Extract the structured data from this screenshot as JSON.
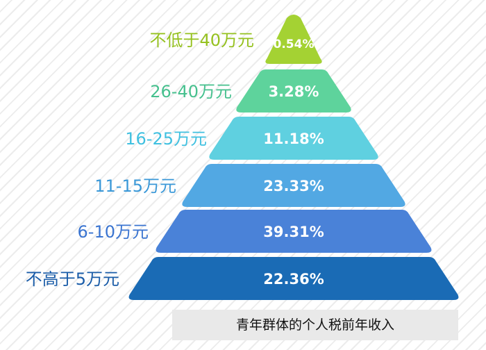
{
  "chart_data": {
    "type": "pyramid",
    "title": "青年群体的个人税前年收入",
    "categories": [
      "不低于40万元",
      "26-40万元",
      "16-25万元",
      "11-15万元",
      "6-10万元",
      "不高于5万元"
    ],
    "values": [
      0.54,
      3.28,
      11.18,
      23.33,
      39.31,
      22.36
    ],
    "value_labels": [
      "0.54%",
      "3.28%",
      "11.18%",
      "23.33%",
      "39.31%",
      "22.36%"
    ],
    "unit": "%",
    "colors": [
      "#a4d233",
      "#5ed39c",
      "#5fd0e0",
      "#52a8e3",
      "#4a82d8",
      "#1a6bb5"
    ],
    "label_colors": [
      "#95c11f",
      "#46c08e",
      "#3fc0e0",
      "#3a98d8",
      "#3a74d0",
      "#1a5ca8"
    ]
  }
}
